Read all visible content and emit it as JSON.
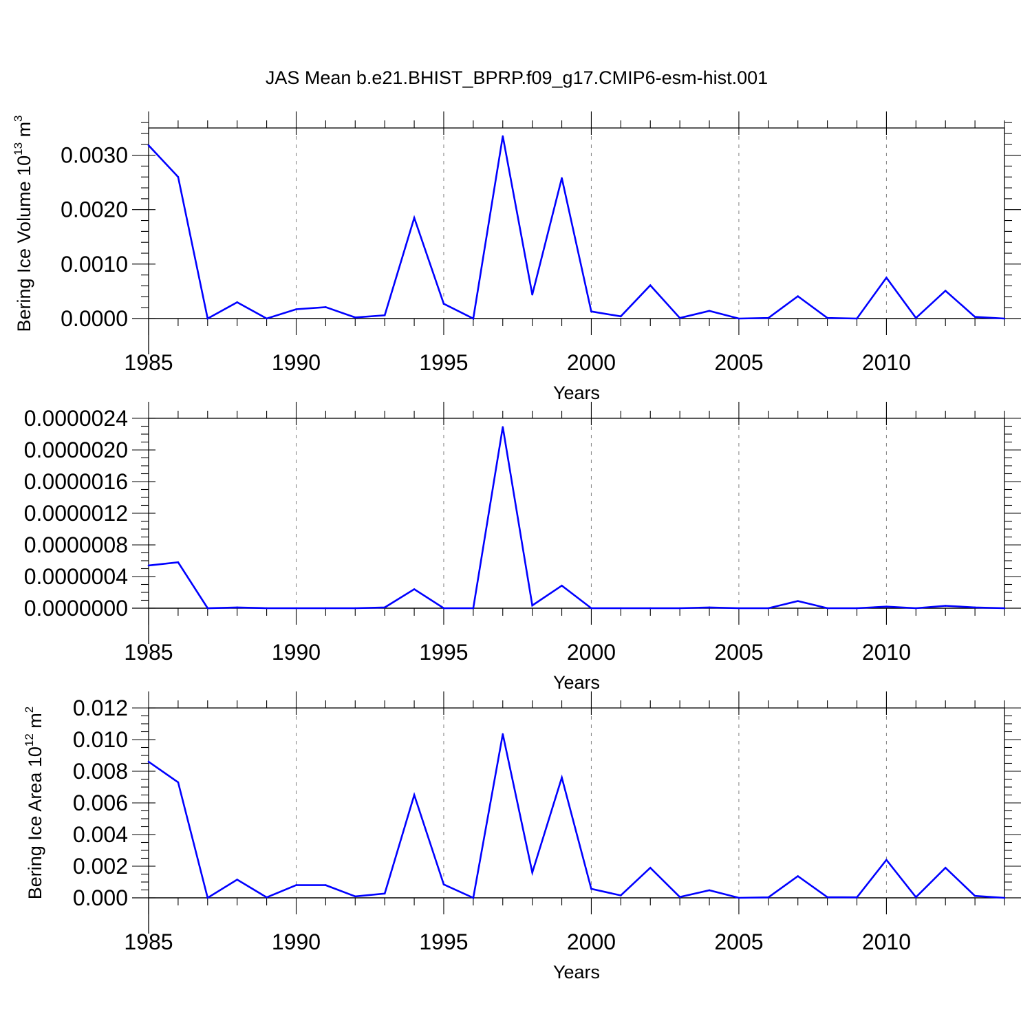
{
  "figure": {
    "title": "JAS Mean b.e21.BHIST_BPRP.f09_g17.CMIP6-esm-hist.001"
  },
  "colors": {
    "series": "#0000ff",
    "axis": "#000000",
    "grid": "#7f7f7f",
    "background": "#ffffff"
  },
  "chart_data": [
    {
      "type": "line",
      "title": "JAS Mean b.e21.BHIST_BPRP.f09_g17.CMIP6-esm-hist.001",
      "xlabel": "Years",
      "ylabel": "Bering Ice Volume 10^13 m^3",
      "ylabel_parts": {
        "main": "Bering Ice Volume 10",
        "exp1": "13",
        "mid": " m",
        "exp2": "3"
      },
      "x": [
        1985,
        1986,
        1987,
        1988,
        1989,
        1990,
        1991,
        1992,
        1993,
        1994,
        1995,
        1996,
        1997,
        1998,
        1999,
        2000,
        2001,
        2002,
        2003,
        2004,
        2005,
        2006,
        2007,
        2008,
        2009,
        2010,
        2011,
        2012,
        2013,
        2014
      ],
      "values": [
        0.00318,
        0.0026,
        0.0,
        0.0003,
        0.0,
        0.00017,
        0.00021,
        2e-05,
        6e-05,
        0.00185,
        0.00027,
        0.0,
        0.00335,
        0.00044,
        0.00258,
        0.00013,
        4e-05,
        0.00061,
        1e-05,
        0.00014,
        0.0,
        1e-05,
        0.00041,
        1e-05,
        0.0,
        0.00075,
        1e-05,
        0.00051,
        3e-05,
        0.0
      ],
      "xlim": [
        1985,
        2014
      ],
      "ylim": [
        0.0,
        0.0035
      ],
      "xticks": [
        1985,
        1990,
        1995,
        2000,
        2005,
        2010
      ],
      "xtick_labels": [
        "1985",
        "1990",
        "1995",
        "2000",
        "2005",
        "2010"
      ],
      "yticks": [
        0.0,
        0.001,
        0.002,
        0.003
      ],
      "ytick_labels": [
        "0.0000",
        "0.0010",
        "0.0020",
        "0.0030"
      ],
      "grid": "vertical dashed at major x ticks"
    },
    {
      "type": "line",
      "xlabel": "Years",
      "ylabel": "",
      "x": [
        1985,
        1986,
        1987,
        1988,
        1989,
        1990,
        1991,
        1992,
        1993,
        1994,
        1995,
        1996,
        1997,
        1998,
        1999,
        2000,
        2001,
        2002,
        2003,
        2004,
        2005,
        2006,
        2007,
        2008,
        2009,
        2010,
        2011,
        2012,
        2013,
        2014
      ],
      "values": [
        5.4e-07,
        5.8e-07,
        0.0,
        1e-08,
        0.0,
        0.0,
        0.0,
        0.0,
        1e-08,
        2.4e-07,
        0.0,
        0.0,
        2.29e-06,
        3.5e-08,
        2.85e-07,
        0.0,
        0.0,
        0.0,
        0.0,
        1e-08,
        0.0,
        0.0,
        9e-08,
        0.0,
        0.0,
        2e-08,
        0.0,
        3e-08,
        1e-08,
        0.0
      ],
      "xlim": [
        1985,
        2014
      ],
      "ylim": [
        0.0,
        2.4e-06
      ],
      "xticks": [
        1985,
        1990,
        1995,
        2000,
        2005,
        2010
      ],
      "xtick_labels": [
        "1985",
        "1990",
        "1995",
        "2000",
        "2005",
        "2010"
      ],
      "yticks": [
        0.0,
        4e-07,
        8e-07,
        1.2e-06,
        1.6e-06,
        2e-06,
        2.4e-06
      ],
      "ytick_labels": [
        "0.0000000",
        "0.0000004",
        "0.0000008",
        "0.0000012",
        "0.0000016",
        "0.0000020",
        "0.0000024"
      ],
      "grid": "vertical dashed at major x ticks"
    },
    {
      "type": "line",
      "xlabel": "Years",
      "ylabel": "Bering Ice Area 10^12 m^2",
      "ylabel_parts": {
        "main": "Bering Ice Area 10",
        "exp1": "12",
        "mid": " m",
        "exp2": "2"
      },
      "x": [
        1985,
        1986,
        1987,
        1988,
        1989,
        1990,
        1991,
        1992,
        1993,
        1994,
        1995,
        1996,
        1997,
        1998,
        1999,
        2000,
        2001,
        2002,
        2003,
        2004,
        2005,
        2006,
        2007,
        2008,
        2009,
        2010,
        2011,
        2012,
        2013,
        2014
      ],
      "values": [
        0.0086,
        0.0073,
        0.0,
        0.00115,
        3e-05,
        0.0008,
        0.0008,
        9e-05,
        0.00027,
        0.0065,
        0.00085,
        0.0,
        0.01035,
        0.0016,
        0.0076,
        0.00057,
        0.00015,
        0.0019,
        5e-05,
        0.00048,
        0.0,
        3e-05,
        0.00137,
        4e-05,
        3e-05,
        0.0024,
        4e-05,
        0.0019,
        0.00012,
        0.0
      ],
      "xlim": [
        1985,
        2014
      ],
      "ylim": [
        0.0,
        0.012
      ],
      "xticks": [
        1985,
        1990,
        1995,
        2000,
        2005,
        2010
      ],
      "xtick_labels": [
        "1985",
        "1990",
        "1995",
        "2000",
        "2005",
        "2010"
      ],
      "yticks": [
        0.0,
        0.002,
        0.004,
        0.006,
        0.008,
        0.01,
        0.012
      ],
      "ytick_labels": [
        "0.000",
        "0.002",
        "0.004",
        "0.006",
        "0.008",
        "0.010",
        "0.012"
      ],
      "grid": "vertical dashed at major x ticks"
    }
  ]
}
